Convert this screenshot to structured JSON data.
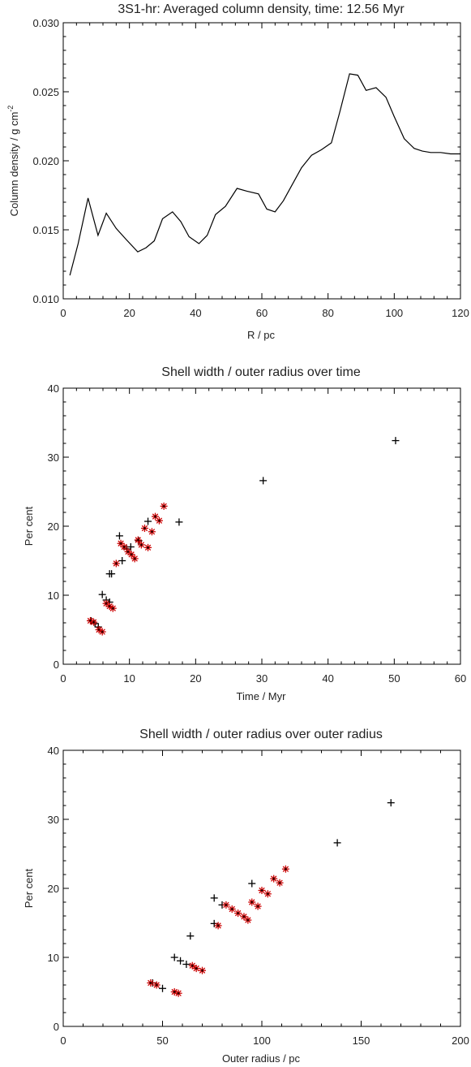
{
  "chart_data": [
    {
      "type": "line",
      "title": "3S1-hr: Averaged column density, time: 12.56 Myr",
      "xlabel": "R / pc",
      "ylabel": "Column density / g cm",
      "ylabel_sup": "-2",
      "xlim": [
        0,
        120
      ],
      "ylim": [
        0.01,
        0.03
      ],
      "xticks": [
        "0",
        "20",
        "40",
        "60",
        "80",
        "100",
        "120"
      ],
      "yticks": [
        "0.010",
        "0.015",
        "0.020",
        "0.025",
        "0.030"
      ],
      "series": [
        {
          "x": [
            2,
            4.5,
            7.5,
            10.5,
            13,
            16,
            19,
            22.5,
            25,
            27.5,
            30,
            33,
            35.5,
            38,
            41,
            43.5,
            46,
            49,
            52.5,
            55.5,
            59,
            61.5,
            64,
            66.5,
            69,
            72,
            75,
            78,
            81,
            83.5,
            86.5,
            89,
            91.5,
            94.5,
            97.5,
            100,
            103,
            106,
            108.5,
            111,
            114,
            117,
            120
          ],
          "y": [
            0.0117,
            0.014,
            0.0173,
            0.0146,
            0.0162,
            0.0151,
            0.0143,
            0.0134,
            0.0137,
            0.0142,
            0.0158,
            0.0163,
            0.0156,
            0.0145,
            0.014,
            0.0146,
            0.0161,
            0.0167,
            0.018,
            0.0178,
            0.0176,
            0.0165,
            0.0163,
            0.0171,
            0.0182,
            0.0195,
            0.0204,
            0.0208,
            0.0213,
            0.0235,
            0.0263,
            0.0262,
            0.0251,
            0.0253,
            0.0246,
            0.0232,
            0.0216,
            0.0209,
            0.0207,
            0.0206,
            0.0206,
            0.0205,
            0.0205
          ]
        }
      ]
    },
    {
      "type": "scatter",
      "title": "Shell width / outer radius over time",
      "xlabel": "Time / Myr",
      "ylabel": "Per cent",
      "xlim": [
        0,
        60
      ],
      "ylim": [
        0,
        40
      ],
      "xticks": [
        "0",
        "10",
        "20",
        "30",
        "40",
        "50",
        "60"
      ],
      "yticks": [
        "0",
        "10",
        "20",
        "30",
        "40"
      ],
      "series": [
        {
          "marker": "plus",
          "color": "#000000",
          "points": [
            [
              4.2,
              6.3
            ],
            [
              4.8,
              5.9
            ],
            [
              5.3,
              5.4
            ],
            [
              5.9,
              10.1
            ],
            [
              6.5,
              9.3
            ],
            [
              7.0,
              9.0
            ],
            [
              7.0,
              13.1
            ],
            [
              7.3,
              13.1
            ],
            [
              8.5,
              18.6
            ],
            [
              8.9,
              15.0
            ],
            [
              9.6,
              16.7
            ],
            [
              10.2,
              17.0
            ],
            [
              11.4,
              17.9
            ],
            [
              12.8,
              20.7
            ],
            [
              17.5,
              20.6
            ],
            [
              30.2,
              26.6
            ],
            [
              50.2,
              32.4
            ]
          ]
        },
        {
          "marker": "star",
          "color": "#cc0000",
          "points": [
            [
              4.1,
              6.3
            ],
            [
              4.6,
              6.1
            ],
            [
              5.4,
              5.0
            ],
            [
              5.9,
              4.7
            ],
            [
              6.5,
              8.8
            ],
            [
              7.0,
              8.4
            ],
            [
              7.5,
              8.1
            ],
            [
              8.0,
              14.6
            ],
            [
              8.7,
              17.5
            ],
            [
              9.2,
              17.0
            ],
            [
              9.8,
              16.3
            ],
            [
              10.3,
              15.9
            ],
            [
              10.8,
              15.3
            ],
            [
              11.3,
              18.0
            ],
            [
              11.8,
              17.3
            ],
            [
              12.3,
              19.7
            ],
            [
              12.8,
              16.9
            ],
            [
              13.4,
              19.2
            ],
            [
              13.9,
              21.4
            ],
            [
              14.5,
              20.8
            ],
            [
              15.2,
              22.9
            ]
          ]
        }
      ]
    },
    {
      "type": "scatter",
      "title": "Shell width / outer radius over outer radius",
      "xlabel": "Outer radius / pc",
      "ylabel": "Per cent",
      "xlim": [
        0,
        200
      ],
      "ylim": [
        0,
        40
      ],
      "xticks": [
        "0",
        "50",
        "100",
        "150",
        "200"
      ],
      "yticks": [
        "0",
        "10",
        "20",
        "30",
        "40"
      ],
      "series": [
        {
          "marker": "plus",
          "color": "#000000",
          "points": [
            [
              45,
              6.3
            ],
            [
              50,
              5.5
            ],
            [
              56,
              10.0
            ],
            [
              59,
              9.5
            ],
            [
              62,
              9.0
            ],
            [
              64,
              13.1
            ],
            [
              76,
              18.6
            ],
            [
              76,
              14.9
            ],
            [
              80,
              17.6
            ],
            [
              95,
              20.7
            ],
            [
              138,
              26.6
            ],
            [
              165,
              32.4
            ]
          ]
        },
        {
          "marker": "star",
          "color": "#cc0000",
          "points": [
            [
              44,
              6.3
            ],
            [
              47,
              6.0
            ],
            [
              56,
              5.0
            ],
            [
              58,
              4.8
            ],
            [
              65,
              8.8
            ],
            [
              67,
              8.4
            ],
            [
              70,
              8.1
            ],
            [
              78,
              14.6
            ],
            [
              82,
              17.6
            ],
            [
              85,
              17.0
            ],
            [
              88,
              16.4
            ],
            [
              91,
              15.9
            ],
            [
              93,
              15.4
            ],
            [
              95,
              18.0
            ],
            [
              98,
              17.4
            ],
            [
              100,
              19.7
            ],
            [
              103,
              19.2
            ],
            [
              106,
              21.4
            ],
            [
              109,
              20.8
            ],
            [
              112,
              22.8
            ]
          ]
        }
      ]
    }
  ]
}
